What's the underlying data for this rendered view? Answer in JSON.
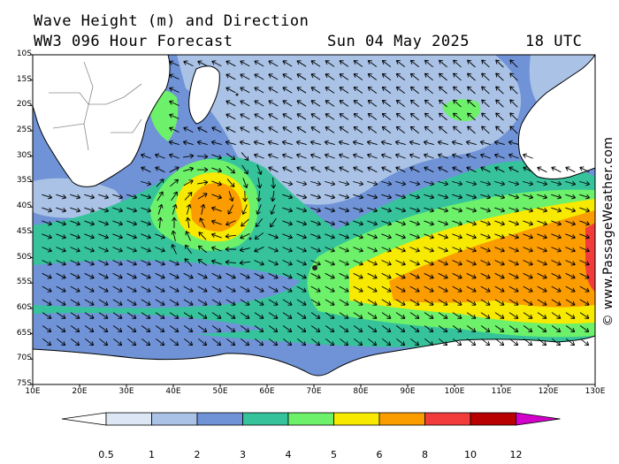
{
  "header": {
    "title_line1": "Wave Height (m) and Direction",
    "title_line2": "WW3 096 Hour Forecast",
    "date": "Sun 04 May 2025",
    "time": "18 UTC"
  },
  "credit": "© www.PassageWeather.com",
  "map": {
    "lat_labels": [
      "10S",
      "15S",
      "20S",
      "25S",
      "30S",
      "35S",
      "40S",
      "45S",
      "50S",
      "55S",
      "60S",
      "65S",
      "70S",
      "75S"
    ],
    "lon_labels": [
      "10E",
      "20E",
      "30E",
      "40E",
      "50E",
      "60E",
      "70E",
      "80E",
      "90E",
      "100E",
      "110E",
      "120E",
      "130E"
    ],
    "land_color": "#ffffff",
    "arrow_color": "#000000"
  },
  "colorbar": {
    "labels": [
      "0.5",
      "1",
      "2",
      "3",
      "4",
      "5",
      "6",
      "8",
      "10",
      "12"
    ],
    "colors": [
      "#ffffff",
      "#dce6f4",
      "#a9c2e6",
      "#6f93d6",
      "#36c39b",
      "#6df06a",
      "#f7e900",
      "#fb9c00",
      "#f23c3c",
      "#b80000",
      "#d200c8"
    ]
  }
}
